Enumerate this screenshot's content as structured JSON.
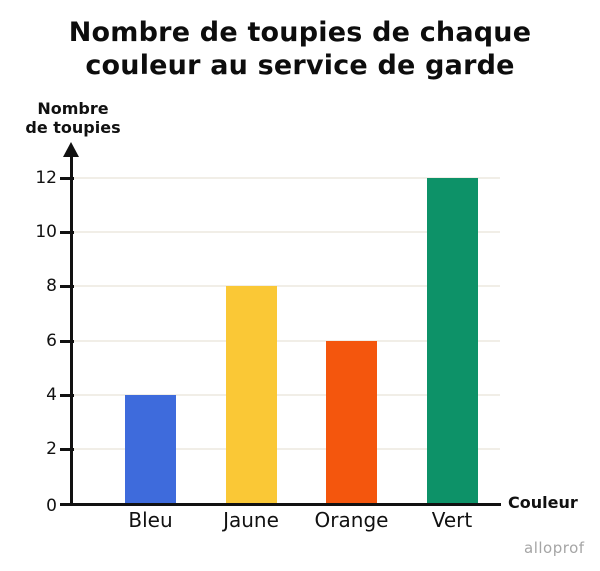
{
  "title": "Nombre de toupies de chaque\ncouleur au service de garde",
  "watermark": "alloprof",
  "chart_data": {
    "type": "bar",
    "title": "Nombre de toupies de chaque couleur au service de garde",
    "categories": [
      "Bleu",
      "Jaune",
      "Orange",
      "Vert"
    ],
    "values": [
      4,
      8,
      6,
      12
    ],
    "bar_colors": [
      "#3E6BDC",
      "#FAC836",
      "#F4560D",
      "#0D9268"
    ],
    "xlabel": "Couleur",
    "ylabel": "Nombre\nde toupies",
    "ylim": [
      0,
      12
    ],
    "yticks": [
      0,
      2,
      4,
      6,
      8,
      10,
      12
    ],
    "grid": true,
    "legend": "none",
    "colors": {
      "gridline": "#F1EEE7",
      "axis": "#111111",
      "text": "#111111",
      "watermark": "#A5A5A5"
    }
  }
}
